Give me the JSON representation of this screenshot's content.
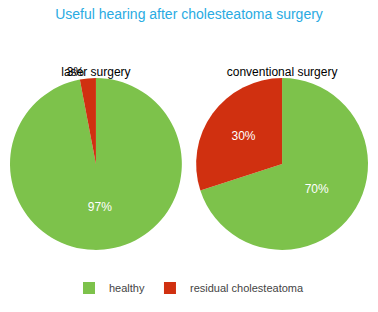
{
  "chart_data": {
    "type": "pie",
    "title": "Useful hearing after cholesteatoma surgery",
    "categories": [
      "healthy",
      "residual cholesteatoma"
    ],
    "colors": [
      "#7DC24B",
      "#D03010"
    ],
    "series": [
      {
        "name": "laser surgery",
        "values": [
          97,
          3
        ],
        "value_labels": [
          "97%",
          "3%"
        ]
      },
      {
        "name": "conventional surgery",
        "values": [
          70,
          30
        ],
        "value_labels": [
          "70%",
          "30%"
        ]
      }
    ],
    "data_labels": true
  }
}
